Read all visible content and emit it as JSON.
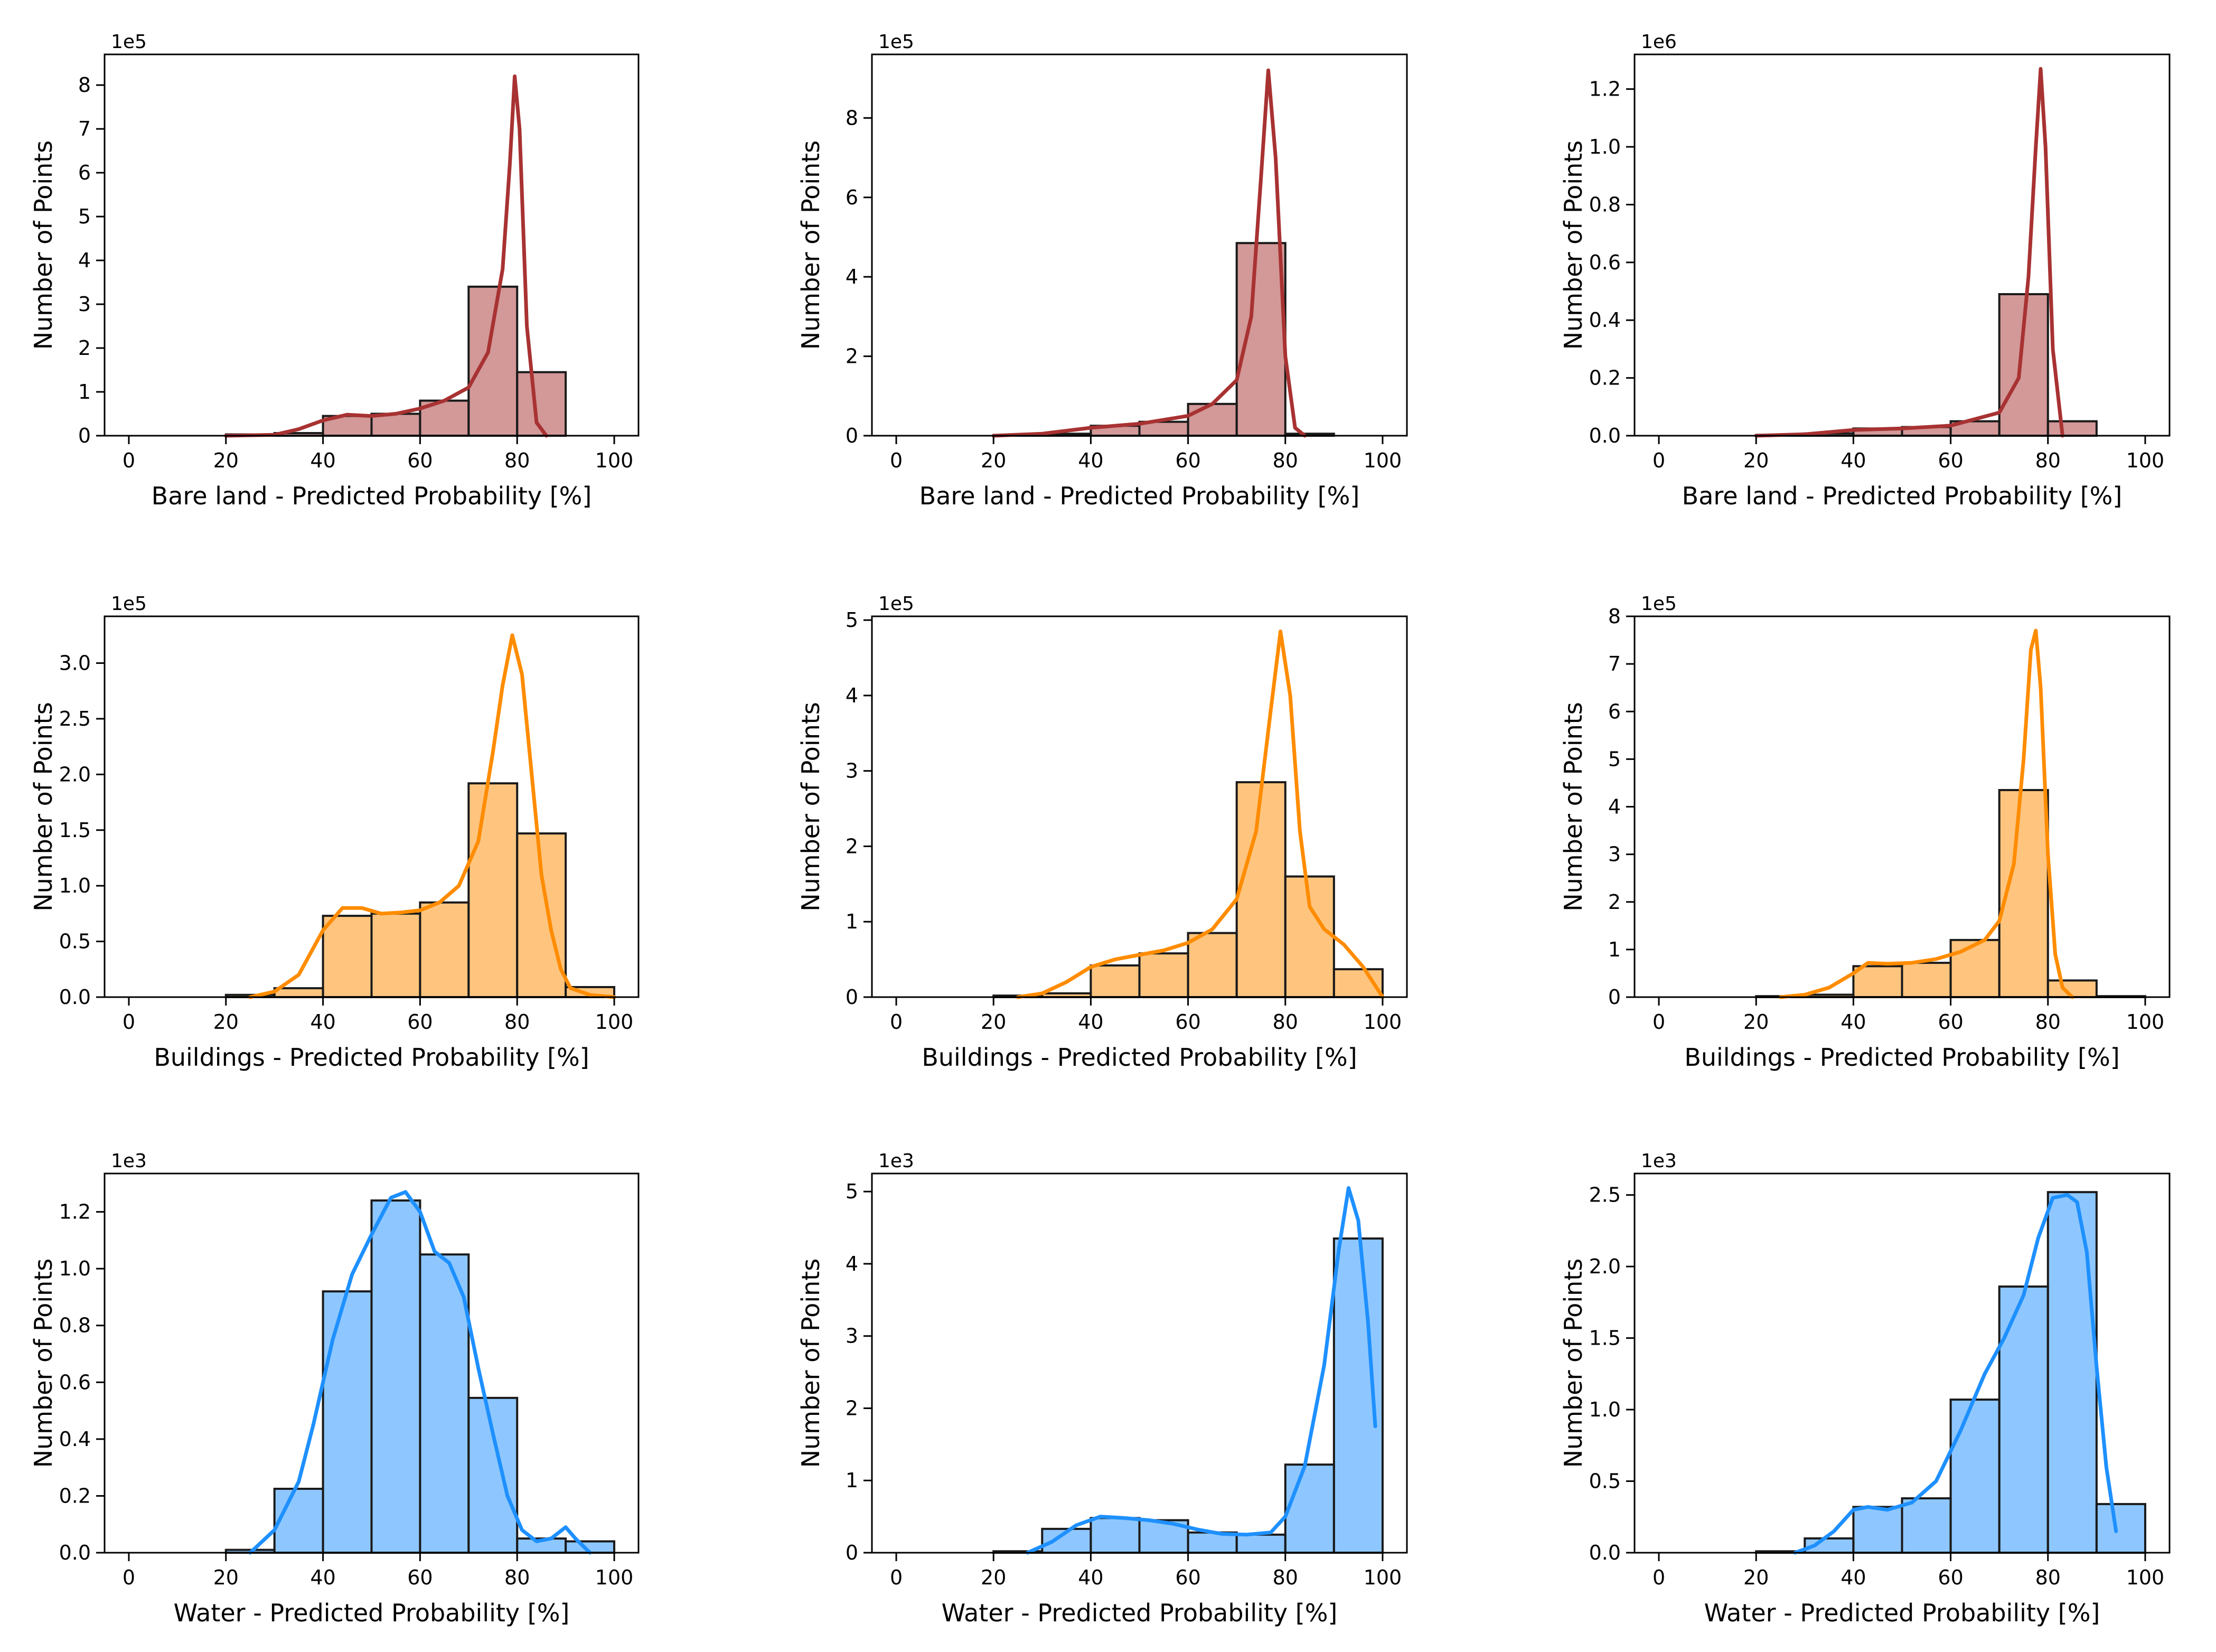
{
  "figure": {
    "ylabel": "Number of Points"
  },
  "colors": {
    "bare": "#a83232",
    "buildings": "#ff8c00",
    "water": "#1e90ff"
  },
  "chart_data": [
    {
      "type": "bar",
      "subtype": "histogram_kde",
      "colorKey": "bare",
      "xlabel": "Bare land - Predicted Probability [%]",
      "ylabel": "Number of Points",
      "multiplier": "1e5",
      "xlim": [
        -5,
        105
      ],
      "ylim": [
        0,
        8.7
      ],
      "xticks": [
        0,
        20,
        40,
        60,
        80,
        100
      ],
      "yticks": [
        0,
        1,
        2,
        3,
        4,
        5,
        6,
        7,
        8
      ],
      "ytick_labels": [
        "0",
        "1",
        "2",
        "3",
        "4",
        "5",
        "6",
        "7",
        "8"
      ],
      "bin_edges": [
        0,
        10,
        20,
        30,
        40,
        50,
        60,
        70,
        80,
        90,
        100
      ],
      "values": [
        0,
        0,
        0.03,
        0.06,
        0.45,
        0.5,
        0.8,
        3.4,
        1.45,
        0
      ],
      "kde": [
        [
          20,
          0
        ],
        [
          30,
          0.02
        ],
        [
          35,
          0.15
        ],
        [
          40,
          0.35
        ],
        [
          45,
          0.48
        ],
        [
          50,
          0.45
        ],
        [
          55,
          0.5
        ],
        [
          60,
          0.62
        ],
        [
          65,
          0.8
        ],
        [
          70,
          1.1
        ],
        [
          74,
          1.9
        ],
        [
          77,
          3.8
        ],
        [
          78.5,
          6.2
        ],
        [
          79.5,
          8.2
        ],
        [
          80.5,
          7.0
        ],
        [
          82,
          2.5
        ],
        [
          84,
          0.3
        ],
        [
          86,
          0
        ]
      ]
    },
    {
      "type": "bar",
      "subtype": "histogram_kde",
      "colorKey": "bare",
      "xlabel": "Bare land - Predicted Probability [%]",
      "ylabel": "Number of Points",
      "multiplier": "1e5",
      "xlim": [
        -5,
        105
      ],
      "ylim": [
        0,
        9.6
      ],
      "xticks": [
        0,
        20,
        40,
        60,
        80,
        100
      ],
      "yticks": [
        0,
        2,
        4,
        6,
        8
      ],
      "ytick_labels": [
        "0",
        "2",
        "4",
        "6",
        "8"
      ],
      "bin_edges": [
        0,
        10,
        20,
        30,
        40,
        50,
        60,
        70,
        80,
        90,
        100
      ],
      "values": [
        0,
        0,
        0.02,
        0.05,
        0.25,
        0.35,
        0.8,
        4.85,
        0.05,
        0
      ],
      "kde": [
        [
          20,
          0
        ],
        [
          30,
          0.05
        ],
        [
          40,
          0.2
        ],
        [
          50,
          0.3
        ],
        [
          60,
          0.5
        ],
        [
          65,
          0.8
        ],
        [
          70,
          1.4
        ],
        [
          73,
          3.0
        ],
        [
          75,
          6.5
        ],
        [
          76.5,
          9.2
        ],
        [
          78,
          7.0
        ],
        [
          80,
          2.0
        ],
        [
          82,
          0.2
        ],
        [
          84,
          0
        ]
      ]
    },
    {
      "type": "bar",
      "subtype": "histogram_kde",
      "colorKey": "bare",
      "xlabel": "Bare land - Predicted Probability [%]",
      "ylabel": "Number of Points",
      "multiplier": "1e6",
      "xlim": [
        -5,
        105
      ],
      "ylim": [
        0,
        1.32
      ],
      "xticks": [
        0,
        20,
        40,
        60,
        80,
        100
      ],
      "yticks": [
        0,
        0.2,
        0.4,
        0.6,
        0.8,
        1.0,
        1.2
      ],
      "ytick_labels": [
        "0.0",
        "0.2",
        "0.4",
        "0.6",
        "0.8",
        "1.0",
        "1.2"
      ],
      "bin_edges": [
        0,
        10,
        20,
        30,
        40,
        50,
        60,
        70,
        80,
        90,
        100
      ],
      "values": [
        0,
        0,
        0.003,
        0.008,
        0.025,
        0.03,
        0.05,
        0.49,
        0.05,
        0
      ],
      "kde": [
        [
          20,
          0
        ],
        [
          30,
          0.005
        ],
        [
          40,
          0.02
        ],
        [
          50,
          0.025
        ],
        [
          60,
          0.035
        ],
        [
          70,
          0.08
        ],
        [
          74,
          0.2
        ],
        [
          76,
          0.55
        ],
        [
          77.5,
          1.0
        ],
        [
          78.5,
          1.27
        ],
        [
          79.5,
          1.0
        ],
        [
          81,
          0.3
        ],
        [
          83,
          0
        ]
      ]
    },
    {
      "type": "bar",
      "subtype": "histogram_kde",
      "colorKey": "buildings",
      "xlabel": "Buildings - Predicted Probability [%]",
      "ylabel": "Number of Points",
      "multiplier": "1e5",
      "xlim": [
        -5,
        105
      ],
      "ylim": [
        0,
        3.42
      ],
      "xticks": [
        0,
        20,
        40,
        60,
        80,
        100
      ],
      "yticks": [
        0,
        0.5,
        1.0,
        1.5,
        2.0,
        2.5,
        3.0
      ],
      "ytick_labels": [
        "0.0",
        "0.5",
        "1.0",
        "1.5",
        "2.0",
        "2.5",
        "3.0"
      ],
      "bin_edges": [
        0,
        10,
        20,
        30,
        40,
        50,
        60,
        70,
        80,
        90,
        100
      ],
      "values": [
        0,
        0,
        0.02,
        0.08,
        0.73,
        0.75,
        0.85,
        1.92,
        1.47,
        0.09
      ],
      "kde": [
        [
          25,
          0
        ],
        [
          30,
          0.05
        ],
        [
          35,
          0.2
        ],
        [
          40,
          0.6
        ],
        [
          44,
          0.8
        ],
        [
          48,
          0.8
        ],
        [
          52,
          0.75
        ],
        [
          56,
          0.76
        ],
        [
          60,
          0.78
        ],
        [
          64,
          0.85
        ],
        [
          68,
          1.0
        ],
        [
          72,
          1.4
        ],
        [
          75,
          2.2
        ],
        [
          77,
          2.8
        ],
        [
          79,
          3.25
        ],
        [
          81,
          2.9
        ],
        [
          83,
          2.0
        ],
        [
          85,
          1.1
        ],
        [
          87,
          0.6
        ],
        [
          89,
          0.25
        ],
        [
          91,
          0.08
        ],
        [
          95,
          0.02
        ],
        [
          100,
          0
        ]
      ]
    },
    {
      "type": "bar",
      "subtype": "histogram_kde",
      "colorKey": "buildings",
      "xlabel": "Buildings - Predicted Probability [%]",
      "ylabel": "Number of Points",
      "multiplier": "1e5",
      "xlim": [
        -5,
        105
      ],
      "ylim": [
        0,
        5.05
      ],
      "xticks": [
        0,
        20,
        40,
        60,
        80,
        100
      ],
      "yticks": [
        0,
        1,
        2,
        3,
        4,
        5
      ],
      "ytick_labels": [
        "0",
        "1",
        "2",
        "3",
        "4",
        "5"
      ],
      "bin_edges": [
        0,
        10,
        20,
        30,
        40,
        50,
        60,
        70,
        80,
        90,
        100
      ],
      "values": [
        0,
        0,
        0.02,
        0.05,
        0.42,
        0.58,
        0.85,
        2.85,
        1.6,
        0.37
      ],
      "kde": [
        [
          25,
          0
        ],
        [
          30,
          0.05
        ],
        [
          35,
          0.2
        ],
        [
          40,
          0.4
        ],
        [
          45,
          0.5
        ],
        [
          50,
          0.56
        ],
        [
          55,
          0.62
        ],
        [
          60,
          0.72
        ],
        [
          65,
          0.9
        ],
        [
          70,
          1.3
        ],
        [
          74,
          2.2
        ],
        [
          77,
          3.8
        ],
        [
          79,
          4.85
        ],
        [
          81,
          4.0
        ],
        [
          83,
          2.2
        ],
        [
          85,
          1.2
        ],
        [
          88,
          0.9
        ],
        [
          92,
          0.7
        ],
        [
          96,
          0.4
        ],
        [
          100,
          0
        ]
      ]
    },
    {
      "type": "bar",
      "subtype": "histogram_kde",
      "colorKey": "buildings",
      "xlabel": "Buildings - Predicted Probability [%]",
      "ylabel": "Number of Points",
      "multiplier": "1e5",
      "xlim": [
        -5,
        105
      ],
      "ylim": [
        0,
        8.0
      ],
      "xticks": [
        0,
        20,
        40,
        60,
        80,
        100
      ],
      "yticks": [
        0,
        1,
        2,
        3,
        4,
        5,
        6,
        7,
        8
      ],
      "ytick_labels": [
        "0",
        "1",
        "2",
        "3",
        "4",
        "5",
        "6",
        "7",
        "8"
      ],
      "bin_edges": [
        0,
        10,
        20,
        30,
        40,
        50,
        60,
        70,
        80,
        90,
        100
      ],
      "values": [
        0,
        0,
        0.02,
        0.05,
        0.65,
        0.72,
        1.2,
        4.35,
        0.35,
        0.02
      ],
      "kde": [
        [
          25,
          0
        ],
        [
          30,
          0.05
        ],
        [
          35,
          0.2
        ],
        [
          40,
          0.5
        ],
        [
          43,
          0.72
        ],
        [
          47,
          0.7
        ],
        [
          52,
          0.72
        ],
        [
          57,
          0.8
        ],
        [
          62,
          0.95
        ],
        [
          67,
          1.2
        ],
        [
          70,
          1.6
        ],
        [
          73,
          2.8
        ],
        [
          75,
          5.0
        ],
        [
          76.5,
          7.3
        ],
        [
          77.5,
          7.7
        ],
        [
          78.5,
          6.5
        ],
        [
          80,
          3.0
        ],
        [
          81.5,
          0.9
        ],
        [
          83,
          0.2
        ],
        [
          85,
          0
        ]
      ]
    },
    {
      "type": "bar",
      "subtype": "histogram_kde",
      "colorKey": "water",
      "xlabel": "Water - Predicted Probability [%]",
      "ylabel": "Number of Points",
      "multiplier": "1e3",
      "xlim": [
        -5,
        105
      ],
      "ylim": [
        0,
        1.335
      ],
      "xticks": [
        0,
        20,
        40,
        60,
        80,
        100
      ],
      "yticks": [
        0,
        0.2,
        0.4,
        0.6,
        0.8,
        1.0,
        1.2
      ],
      "ytick_labels": [
        "0.0",
        "0.2",
        "0.4",
        "0.6",
        "0.8",
        "1.0",
        "1.2"
      ],
      "bin_edges": [
        0,
        10,
        20,
        30,
        40,
        50,
        60,
        70,
        80,
        90,
        100
      ],
      "values": [
        0,
        0,
        0.01,
        0.225,
        0.92,
        1.24,
        1.05,
        0.545,
        0.05,
        0.04
      ],
      "kde": [
        [
          25,
          0
        ],
        [
          30,
          0.08
        ],
        [
          35,
          0.25
        ],
        [
          38,
          0.45
        ],
        [
          42,
          0.75
        ],
        [
          46,
          0.98
        ],
        [
          50,
          1.12
        ],
        [
          54,
          1.25
        ],
        [
          57,
          1.27
        ],
        [
          60,
          1.2
        ],
        [
          63,
          1.06
        ],
        [
          66,
          1.02
        ],
        [
          69,
          0.9
        ],
        [
          72,
          0.65
        ],
        [
          75,
          0.42
        ],
        [
          78,
          0.2
        ],
        [
          81,
          0.08
        ],
        [
          84,
          0.04
        ],
        [
          87,
          0.05
        ],
        [
          90,
          0.09
        ],
        [
          92,
          0.05
        ],
        [
          95,
          0
        ]
      ]
    },
    {
      "type": "bar",
      "subtype": "histogram_kde",
      "colorKey": "water",
      "xlabel": "Water - Predicted Probability [%]",
      "ylabel": "Number of Points",
      "multiplier": "1e3",
      "xlim": [
        -5,
        105
      ],
      "ylim": [
        0,
        5.25
      ],
      "xticks": [
        0,
        20,
        40,
        60,
        80,
        100
      ],
      "yticks": [
        0,
        1,
        2,
        3,
        4,
        5
      ],
      "ytick_labels": [
        "0",
        "1",
        "2",
        "3",
        "4",
        "5"
      ],
      "bin_edges": [
        0,
        10,
        20,
        30,
        40,
        50,
        60,
        70,
        80,
        90,
        100
      ],
      "values": [
        0,
        0,
        0.02,
        0.33,
        0.48,
        0.45,
        0.28,
        0.25,
        1.22,
        4.35
      ],
      "kde": [
        [
          27,
          0
        ],
        [
          32,
          0.15
        ],
        [
          37,
          0.38
        ],
        [
          42,
          0.5
        ],
        [
          47,
          0.48
        ],
        [
          52,
          0.45
        ],
        [
          57,
          0.4
        ],
        [
          62,
          0.32
        ],
        [
          67,
          0.26
        ],
        [
          72,
          0.25
        ],
        [
          77,
          0.28
        ],
        [
          80,
          0.5
        ],
        [
          84,
          1.2
        ],
        [
          88,
          2.6
        ],
        [
          91,
          4.2
        ],
        [
          93,
          5.05
        ],
        [
          95,
          4.6
        ],
        [
          97,
          3.2
        ],
        [
          98.5,
          1.75
        ]
      ]
    },
    {
      "type": "bar",
      "subtype": "histogram_kde",
      "colorKey": "water",
      "xlabel": "Water - Predicted Probability [%]",
      "ylabel": "Number of Points",
      "multiplier": "1e3",
      "xlim": [
        -5,
        105
      ],
      "ylim": [
        0,
        2.65
      ],
      "xticks": [
        0,
        20,
        40,
        60,
        80,
        100
      ],
      "yticks": [
        0,
        0.5,
        1.0,
        1.5,
        2.0,
        2.5
      ],
      "ytick_labels": [
        "0.0",
        "0.5",
        "1.0",
        "1.5",
        "2.0",
        "2.5"
      ],
      "bin_edges": [
        0,
        10,
        20,
        30,
        40,
        50,
        60,
        70,
        80,
        90,
        100
      ],
      "values": [
        0,
        0,
        0.01,
        0.1,
        0.32,
        0.38,
        1.07,
        1.86,
        2.52,
        0.34
      ],
      "kde": [
        [
          28,
          0
        ],
        [
          32,
          0.05
        ],
        [
          36,
          0.15
        ],
        [
          40,
          0.3
        ],
        [
          43,
          0.32
        ],
        [
          47,
          0.3
        ],
        [
          52,
          0.35
        ],
        [
          57,
          0.5
        ],
        [
          62,
          0.85
        ],
        [
          67,
          1.25
        ],
        [
          71,
          1.5
        ],
        [
          75,
          1.8
        ],
        [
          78,
          2.2
        ],
        [
          81,
          2.48
        ],
        [
          84,
          2.5
        ],
        [
          86,
          2.45
        ],
        [
          88,
          2.1
        ],
        [
          90,
          1.3
        ],
        [
          92,
          0.6
        ],
        [
          94,
          0.15
        ]
      ]
    }
  ]
}
